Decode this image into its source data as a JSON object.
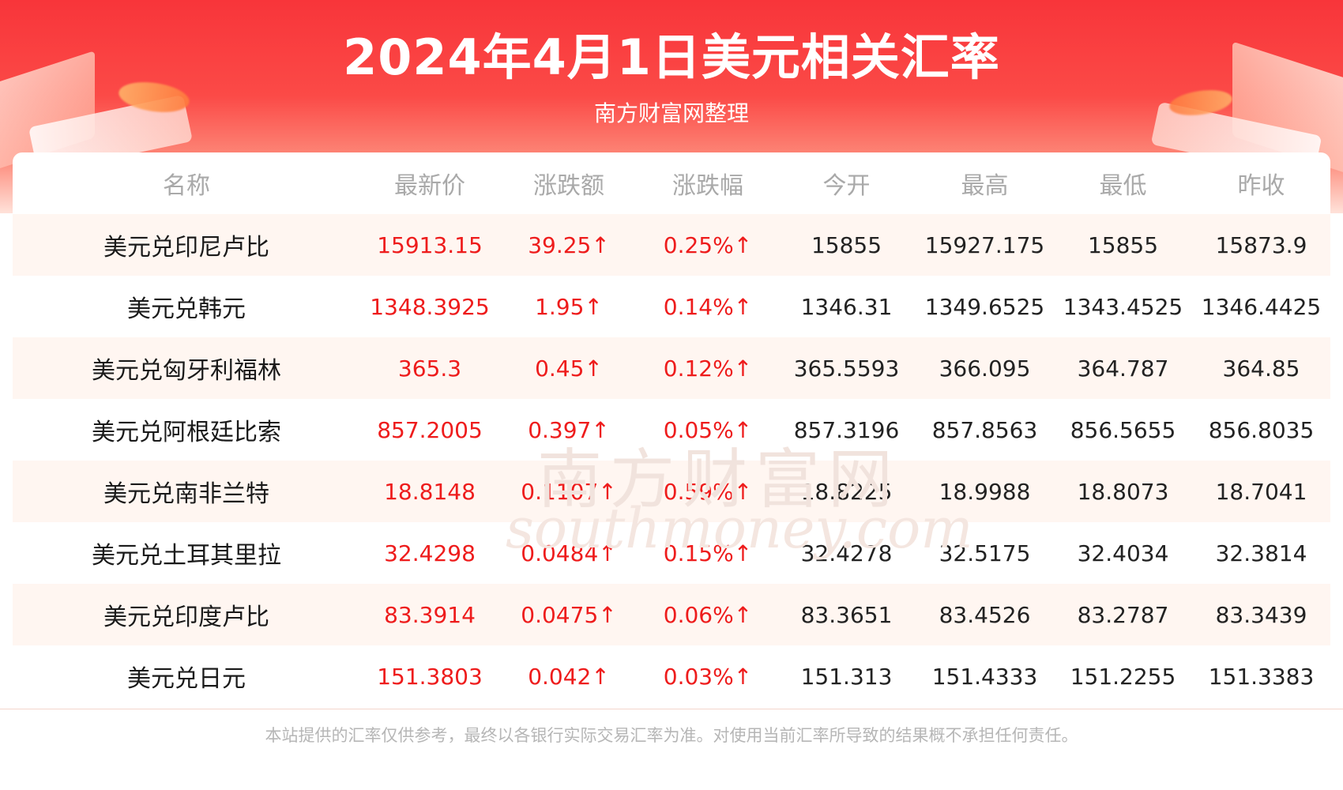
{
  "header": {
    "title": "2024年4月1日美元相关汇率",
    "subtitle": "南方财富网整理"
  },
  "table": {
    "columns": [
      "名称",
      "最新价",
      "涨跌额",
      "涨跌幅",
      "今开",
      "最高",
      "最低",
      "昨收"
    ],
    "rows": [
      [
        "美元兑印尼卢比",
        "15913.15",
        "39.25↑",
        "0.25%↑",
        "15855",
        "15927.175",
        "15855",
        "15873.9"
      ],
      [
        "美元兑韩元",
        "1348.3925",
        "1.95↑",
        "0.14%↑",
        "1346.31",
        "1349.6525",
        "1343.4525",
        "1346.4425"
      ],
      [
        "美元兑匈牙利福林",
        "365.3",
        "0.45↑",
        "0.12%↑",
        "365.5593",
        "366.095",
        "364.787",
        "364.85"
      ],
      [
        "美元兑阿根廷比索",
        "857.2005",
        "0.397↑",
        "0.05%↑",
        "857.3196",
        "857.8563",
        "856.5655",
        "856.8035"
      ],
      [
        "美元兑南非兰特",
        "18.8148",
        "0.1107↑",
        "0.59%↑",
        "18.8225",
        "18.9988",
        "18.8073",
        "18.7041"
      ],
      [
        "美元兑土耳其里拉",
        "32.4298",
        "0.0484↑",
        "0.15%↑",
        "32.4278",
        "32.5175",
        "32.4034",
        "32.3814"
      ],
      [
        "美元兑印度卢比",
        "83.3914",
        "0.0475↑",
        "0.06%↑",
        "83.3651",
        "83.4526",
        "83.2787",
        "83.3439"
      ],
      [
        "美元兑日元",
        "151.3803",
        "0.042↑",
        "0.03%↑",
        "151.313",
        "151.4333",
        "151.2255",
        "151.3383"
      ]
    ]
  },
  "watermark": {
    "text_cn": "南方财富网",
    "text_en": "southmoney.com"
  },
  "footer": {
    "disclaimer": "本站提供的汇率仅供参考，最终以各银行实际交易汇率为准。对使用当前汇率所导致的结果概不承担任何责任。"
  },
  "colors": {
    "header_red": "#f8353a",
    "up_red": "#ee1c1c",
    "stripe": "#fff6f1"
  }
}
